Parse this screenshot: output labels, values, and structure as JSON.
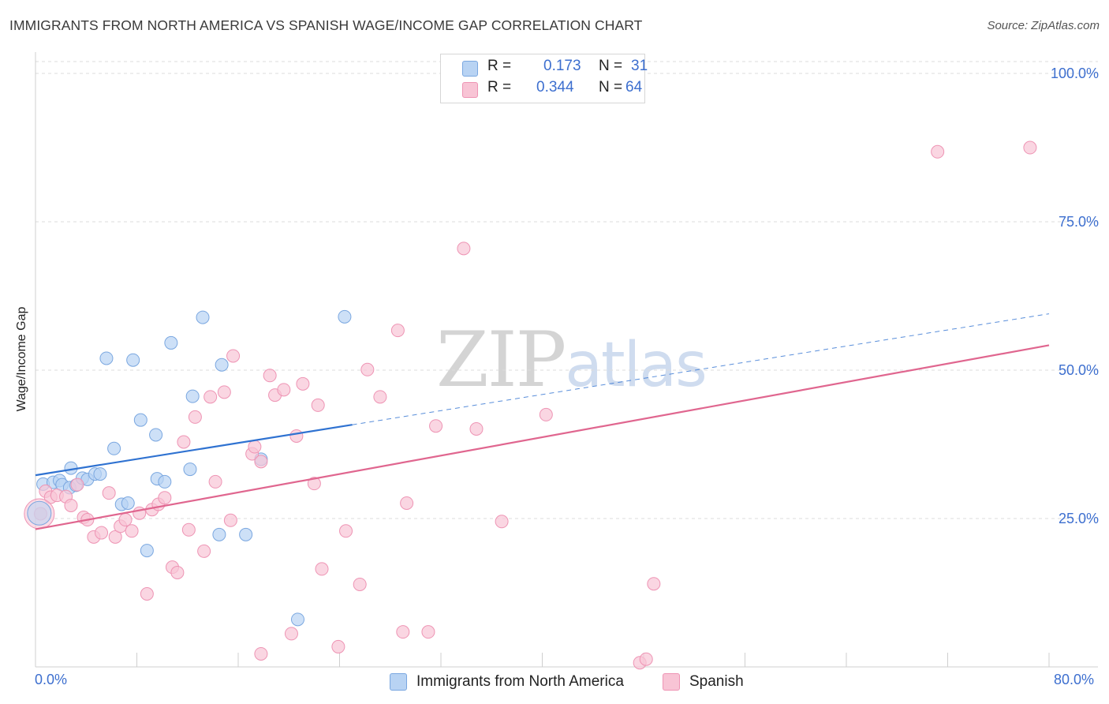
{
  "title": "IMMIGRANTS FROM NORTH AMERICA VS SPANISH WAGE/INCOME GAP CORRELATION CHART",
  "source": "Source: ZipAtlas.com",
  "watermark": {
    "zip": "ZIP",
    "atlas": "atlas"
  },
  "legend": {
    "rows": [
      {
        "r_label": "R =",
        "r_value": "0.173",
        "n_label": "N =",
        "n_value": "31"
      },
      {
        "r_label": "R =",
        "r_value": "0.344",
        "n_label": "N =",
        "n_value": "64"
      }
    ]
  },
  "colors": {
    "blue_fill": "#b8d3f3",
    "blue_stroke": "#7aa7e0",
    "blue_line": "#2f72d1",
    "pink_fill": "#f8c4d5",
    "pink_stroke": "#ee94b4",
    "pink_line": "#e0668f",
    "tick_text": "#3d6fcf"
  },
  "chart_data": {
    "type": "scatter",
    "title": "IMMIGRANTS FROM NORTH AMERICA VS SPANISH WAGE/INCOME GAP CORRELATION CHART",
    "xlabel": "",
    "ylabel": "Wage/Income Gap",
    "xlim": [
      0,
      80
    ],
    "ylim": [
      0,
      102
    ],
    "x_tick_labels": [
      "0.0%",
      "80.0%"
    ],
    "y_ticks": [
      25,
      50,
      75,
      100
    ],
    "y_tick_labels": [
      "25.0%",
      "50.0%",
      "75.0%",
      "100.0%"
    ],
    "grid": true,
    "legend_position": "top-center",
    "series": [
      {
        "name": "Immigrants from North America",
        "color": "blue",
        "r": 0.173,
        "n": 31,
        "trend": {
          "x0": 0,
          "y0": 32.3,
          "x1": 25,
          "y1": 40.8,
          "dash_to_x": 80,
          "dash_to_y": 59.5
        },
        "points": [
          [
            0.6,
            30.8
          ],
          [
            1.4,
            31.1
          ],
          [
            1.9,
            31.4
          ],
          [
            2.1,
            30.7
          ],
          [
            2.7,
            30.2
          ],
          [
            2.8,
            33.5
          ],
          [
            3.2,
            30.6
          ],
          [
            3.7,
            31.8
          ],
          [
            4.1,
            31.6
          ],
          [
            4.7,
            32.5
          ],
          [
            5.1,
            32.5
          ],
          [
            5.6,
            52.0
          ],
          [
            6.2,
            36.8
          ],
          [
            6.8,
            27.4
          ],
          [
            7.3,
            27.6
          ],
          [
            7.7,
            51.7
          ],
          [
            8.3,
            41.6
          ],
          [
            8.8,
            19.6
          ],
          [
            9.5,
            39.1
          ],
          [
            9.6,
            31.7
          ],
          [
            10.2,
            31.2
          ],
          [
            10.7,
            54.6
          ],
          [
            12.2,
            33.3
          ],
          [
            12.4,
            45.6
          ],
          [
            13.2,
            58.9
          ],
          [
            14.5,
            22.3
          ],
          [
            14.7,
            50.9
          ],
          [
            16.6,
            22.3
          ],
          [
            17.8,
            35.0
          ],
          [
            20.7,
            8.0
          ],
          [
            24.4,
            59.0
          ]
        ],
        "sizes": [
          1,
          1,
          1,
          1,
          1,
          1,
          1,
          1,
          1,
          1,
          1,
          1,
          1,
          1,
          1,
          1,
          1,
          1,
          1,
          1,
          1,
          1,
          1,
          1,
          1,
          1,
          1,
          1,
          1,
          1,
          1
        ]
      },
      {
        "name": "Spanish",
        "color": "pink",
        "r": 0.344,
        "n": 64,
        "trend": {
          "x0": 0,
          "y0": 23.2,
          "x1": 80,
          "y1": 54.2
        },
        "points": [
          [
            0.4,
            25.8
          ],
          [
            0.8,
            29.6
          ],
          [
            1.2,
            28.6
          ],
          [
            1.7,
            28.9
          ],
          [
            2.4,
            28.7
          ],
          [
            2.8,
            27.2
          ],
          [
            3.3,
            30.7
          ],
          [
            3.8,
            25.2
          ],
          [
            4.1,
            24.8
          ],
          [
            4.6,
            21.9
          ],
          [
            5.2,
            22.6
          ],
          [
            5.8,
            29.3
          ],
          [
            6.3,
            21.9
          ],
          [
            6.7,
            23.7
          ],
          [
            7.1,
            24.8
          ],
          [
            7.6,
            22.9
          ],
          [
            8.2,
            25.9
          ],
          [
            8.8,
            12.3
          ],
          [
            9.2,
            26.5
          ],
          [
            9.7,
            27.4
          ],
          [
            10.2,
            28.5
          ],
          [
            10.8,
            16.8
          ],
          [
            11.2,
            15.9
          ],
          [
            11.7,
            37.9
          ],
          [
            12.1,
            23.1
          ],
          [
            12.6,
            42.1
          ],
          [
            13.3,
            19.5
          ],
          [
            13.8,
            45.5
          ],
          [
            14.2,
            31.2
          ],
          [
            14.9,
            46.3
          ],
          [
            15.4,
            24.7
          ],
          [
            15.6,
            52.4
          ],
          [
            17.1,
            35.9
          ],
          [
            17.3,
            37.1
          ],
          [
            17.8,
            34.6
          ],
          [
            17.8,
            2.2
          ],
          [
            18.5,
            49.1
          ],
          [
            18.9,
            45.8
          ],
          [
            19.6,
            46.7
          ],
          [
            20.2,
            5.6
          ],
          [
            20.6,
            38.9
          ],
          [
            21.1,
            47.7
          ],
          [
            22.0,
            30.9
          ],
          [
            22.3,
            44.1
          ],
          [
            22.6,
            16.5
          ],
          [
            23.9,
            3.4
          ],
          [
            24.5,
            22.9
          ],
          [
            25.6,
            13.9
          ],
          [
            26.2,
            50.1
          ],
          [
            27.2,
            45.5
          ],
          [
            28.6,
            56.7
          ],
          [
            29.0,
            5.9
          ],
          [
            29.3,
            27.6
          ],
          [
            31.0,
            5.9
          ],
          [
            31.6,
            40.6
          ],
          [
            33.8,
            70.5
          ],
          [
            34.8,
            40.1
          ],
          [
            36.8,
            24.5
          ],
          [
            40.3,
            42.5
          ],
          [
            47.7,
            0.7
          ],
          [
            48.2,
            1.3
          ],
          [
            48.8,
            14.0
          ],
          [
            71.2,
            86.8
          ],
          [
            78.5,
            87.5
          ]
        ],
        "sizes": [
          1,
          1,
          1,
          1,
          1,
          1,
          1,
          1,
          1,
          1,
          1,
          1,
          1,
          1,
          1,
          1,
          1,
          1,
          1,
          1,
          1,
          1,
          1,
          1,
          1,
          1,
          1,
          1,
          1,
          1,
          1,
          1,
          1,
          1,
          1,
          1,
          1,
          1,
          1,
          1,
          1,
          1,
          1,
          1,
          1,
          1,
          1,
          1,
          1,
          1,
          1,
          1,
          1,
          1,
          1,
          1,
          1,
          1,
          1,
          1,
          1,
          1,
          1,
          1
        ]
      }
    ]
  }
}
